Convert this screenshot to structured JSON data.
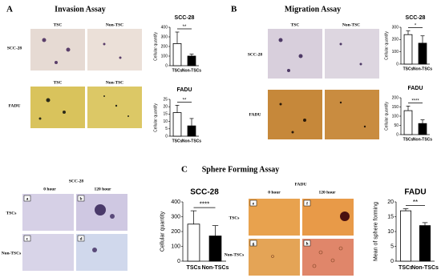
{
  "figure": {
    "A": {
      "label": "A",
      "title": "Invasion Assay",
      "columns": [
        "TSC",
        "Non-TSC"
      ],
      "rows": [
        "SCC-28",
        "FADU"
      ]
    },
    "B": {
      "label": "B",
      "title": "Migration Assay",
      "columns": [
        "TSC",
        "Non-TSC"
      ],
      "rows": [
        "SCC-28",
        "FADU"
      ]
    },
    "C": {
      "label": "C",
      "title": "Sphere Forming Assay",
      "left": {
        "title": "SCC-28",
        "columns": [
          "0 hour",
          "120 hour"
        ],
        "rows": [
          "TSCs",
          "Non-TSCs"
        ],
        "tiles": [
          "a",
          "b",
          "c",
          "d"
        ]
      },
      "right": {
        "title": "FADU",
        "columns": [
          "0 hour",
          "120 hour"
        ],
        "rows": [
          "TSCs",
          "Non-TSCs"
        ],
        "tiles": [
          "e",
          "f",
          "g",
          "h"
        ]
      }
    }
  },
  "chart_data": [
    {
      "type": "bar",
      "title": "SCC-28",
      "ylabel": "Cellular quantify",
      "categories": [
        "TSCs",
        "Non-TSCs"
      ],
      "values": [
        230,
        100
      ],
      "errors": [
        120,
        20
      ],
      "colors": [
        "#ffffff",
        "#000000"
      ],
      "ylim": [
        0,
        400
      ],
      "yticks": [
        0,
        100,
        200,
        300,
        400
      ],
      "significance": "**"
    },
    {
      "type": "bar",
      "title": "FADU",
      "ylabel": "Cellular quantify",
      "categories": [
        "TSCs",
        "Non-TSCs"
      ],
      "values": [
        16,
        7
      ],
      "errors": [
        5,
        5
      ],
      "colors": [
        "#ffffff",
        "#000000"
      ],
      "ylim": [
        0,
        25
      ],
      "yticks": [
        0,
        5,
        10,
        15,
        20,
        25
      ],
      "significance": "**"
    },
    {
      "type": "bar",
      "title": "SCC-28",
      "ylabel": "Cellular quantify",
      "categories": [
        "TSCs",
        "Non-TSCs"
      ],
      "values": [
        240,
        170
      ],
      "errors": [
        30,
        60
      ],
      "colors": [
        "#ffffff",
        "#000000"
      ],
      "ylim": [
        0,
        300
      ],
      "yticks": [
        0,
        100,
        200,
        300
      ],
      "significance": "*"
    },
    {
      "type": "bar",
      "title": "FADU",
      "ylabel": "Cellular quantify",
      "categories": [
        "TSCs",
        "Non-TSCs"
      ],
      "values": [
        130,
        60
      ],
      "errors": [
        25,
        20
      ],
      "colors": [
        "#ffffff",
        "#000000"
      ],
      "ylim": [
        0,
        200
      ],
      "yticks": [
        0,
        50,
        100,
        150,
        200
      ],
      "significance": "****"
    },
    {
      "type": "bar",
      "title": "SCC-28",
      "ylabel": "Cellular quantity",
      "categories": [
        "TSCs",
        "Non-TSCs"
      ],
      "values": [
        250,
        170
      ],
      "errors": [
        90,
        70
      ],
      "colors": [
        "#ffffff",
        "#000000"
      ],
      "ylim": [
        0,
        400
      ],
      "yticks": [
        0,
        100,
        200,
        300,
        400
      ],
      "significance": "****"
    },
    {
      "type": "bar",
      "title": "FADU",
      "ylabel": "Mean of sphere forming",
      "categories": [
        "TSCs",
        "Non-TSCs"
      ],
      "values": [
        17,
        12
      ],
      "errors": [
        0.7,
        1
      ],
      "colors": [
        "#ffffff",
        "#000000"
      ],
      "ylim": [
        0,
        20
      ],
      "yticks": [
        0,
        5,
        10,
        15,
        20
      ],
      "significance": "**"
    }
  ]
}
